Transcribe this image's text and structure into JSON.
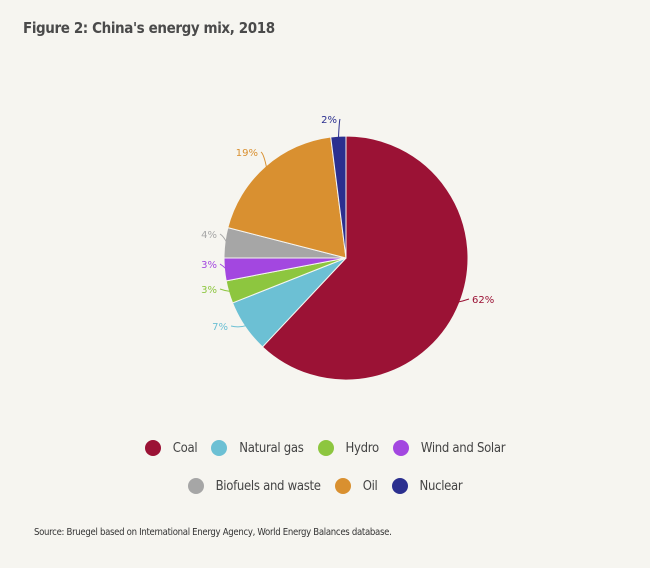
{
  "chart_data": {
    "type": "pie",
    "title": "Figure 2: China's energy mix, 2018",
    "start_angle": "12 o'clock, clockwise",
    "slices": [
      {
        "label": "Coal",
        "value": 62,
        "data_label": "62%",
        "color": "#9b1235"
      },
      {
        "label": "Natural gas",
        "value": 7,
        "data_label": "7%",
        "color": "#6cc0d4"
      },
      {
        "label": "Hydro",
        "value": 3,
        "data_label": "3%",
        "color": "#8dc63f"
      },
      {
        "label": "Wind and Solar",
        "value": 3,
        "data_label": "3%",
        "color": "#a347e0"
      },
      {
        "label": "Biofuels and waste",
        "value": 4,
        "data_label": "4%",
        "color": "#a6a6a6"
      },
      {
        "label": "Oil",
        "value": 19,
        "data_label": "19%",
        "color": "#d99030"
      },
      {
        "label": "Nuclear",
        "value": 2,
        "data_label": "2%",
        "color": "#2b2f8f"
      }
    ],
    "legend_placement": "bottom",
    "source": "Source: Bruegel based on International Energy Agency, World Energy Balances database."
  }
}
